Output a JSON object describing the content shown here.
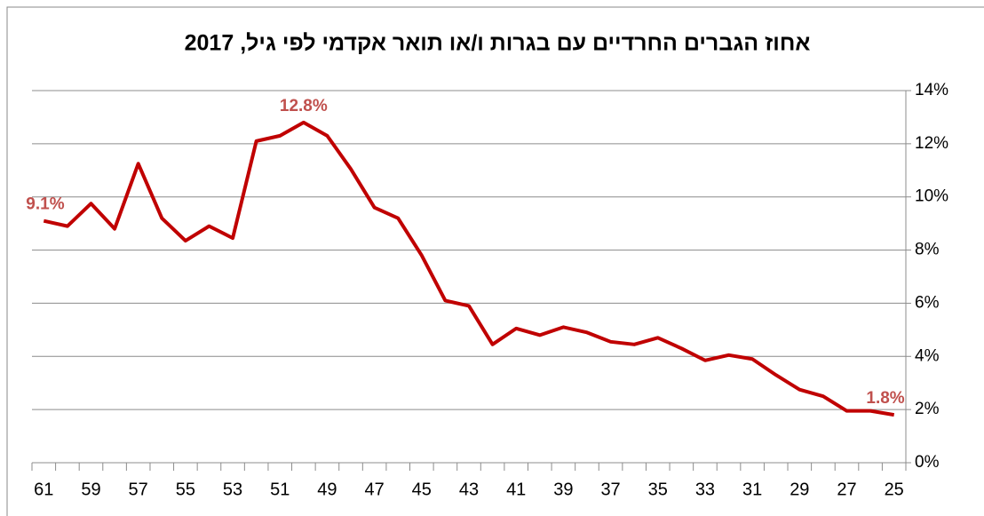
{
  "chart_data": {
    "type": "line",
    "title": "אחוז הגברים החרדיים עם בגרות ו/או תואר אקדמי לפי גיל, 2017",
    "categories": [
      "61",
      null,
      "59",
      null,
      "57",
      null,
      "55",
      null,
      "53",
      null,
      "51",
      null,
      "49",
      null,
      "47",
      null,
      "45",
      null,
      "43",
      null,
      "41",
      null,
      "39",
      null,
      "37",
      null,
      "35",
      null,
      "33",
      null,
      "31",
      null,
      "29",
      null,
      "27",
      null,
      "25"
    ],
    "series": [
      {
        "name": "אחוז",
        "color": "#c00000",
        "values": [
          9.1,
          8.9,
          9.75,
          8.8,
          11.25,
          9.2,
          8.35,
          8.9,
          8.45,
          12.1,
          12.3,
          12.8,
          12.3,
          11.05,
          9.6,
          9.2,
          7.8,
          6.1,
          5.9,
          4.45,
          5.05,
          4.8,
          5.1,
          4.9,
          4.55,
          4.45,
          4.7,
          4.3,
          3.85,
          4.05,
          3.9,
          3.3,
          2.75,
          2.5,
          1.95,
          1.95,
          1.8
        ],
        "value_labels": [
          "9.1%",
          null,
          null,
          null,
          null,
          null,
          null,
          null,
          null,
          null,
          null,
          "12.8%",
          null,
          null,
          null,
          null,
          null,
          null,
          null,
          null,
          null,
          null,
          null,
          null,
          null,
          null,
          null,
          null,
          null,
          null,
          null,
          null,
          null,
          null,
          null,
          null,
          "1.8%"
        ]
      }
    ],
    "ylim": [
      0,
      14
    ],
    "yticks": [
      {
        "value": 0,
        "label": "0%"
      },
      {
        "value": 2,
        "label": "2%"
      },
      {
        "value": 4,
        "label": "4%"
      },
      {
        "value": 6,
        "label": "6%"
      },
      {
        "value": 8,
        "label": "8%"
      },
      {
        "value": 10,
        "label": "10%"
      },
      {
        "value": 12,
        "label": "12%"
      },
      {
        "value": 14,
        "label": "14%"
      }
    ],
    "grid": true
  }
}
